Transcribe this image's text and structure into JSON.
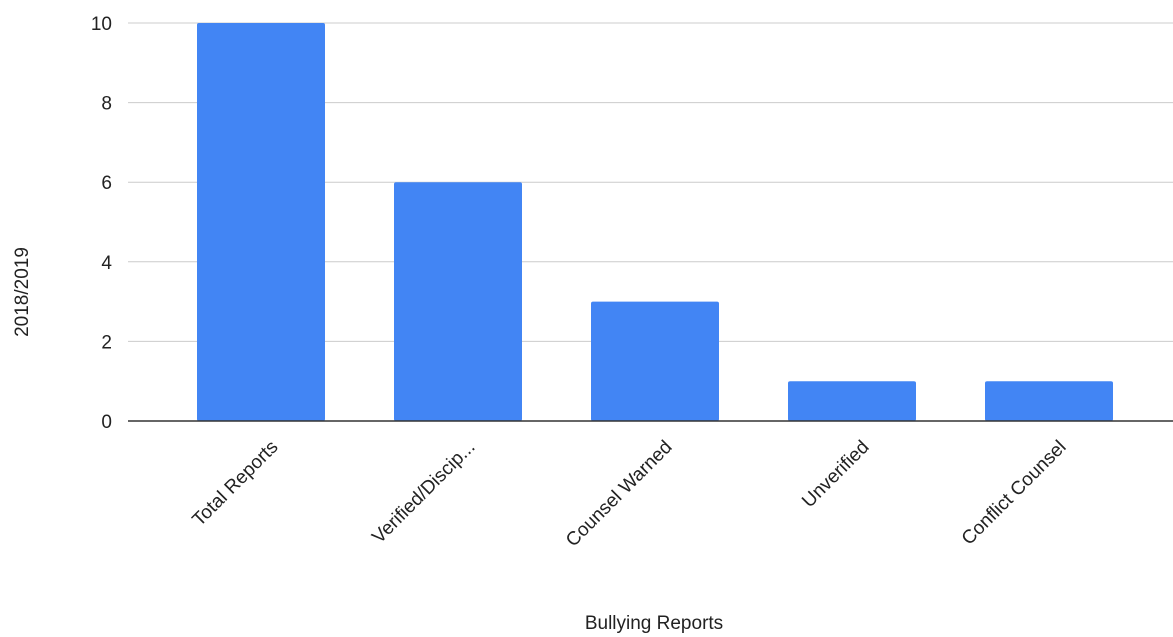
{
  "chart_data": {
    "type": "bar",
    "categories": [
      "Total Reports",
      "Verified/Discip...",
      "Counsel Warned",
      "Unverified",
      "Conflict Counsel"
    ],
    "values": [
      10,
      6,
      3,
      1,
      1
    ],
    "title": "",
    "xlabel": "Bullying Reports",
    "ylabel": "2018/2019",
    "ylim": [
      0,
      10
    ],
    "yticks": [
      0,
      2,
      4,
      6,
      8,
      10
    ],
    "grid": true,
    "legend": "none",
    "bar_color": "#4285f4"
  }
}
